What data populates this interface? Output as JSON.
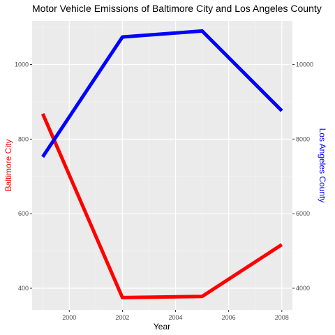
{
  "chart_data": {
    "type": "line",
    "title": "Motor Vehicle Emissions of Baltimore City and Los Angeles County",
    "xlabel": "Year",
    "x": [
      1999,
      2002,
      2005,
      2008
    ],
    "xlim": [
      1998.6,
      2008.4
    ],
    "x_ticks": [
      2000,
      2002,
      2004,
      2006,
      2008
    ],
    "x_tick_labels": [
      "2000",
      "2002",
      "2004",
      "2006",
      "2008"
    ],
    "grid": true,
    "panel_color": "#ebebeb",
    "series": [
      {
        "name": "Baltimore City",
        "axis": "left",
        "color": "#ff0000",
        "values": [
          868,
          375,
          378,
          517
        ]
      },
      {
        "name": "Los Angeles County",
        "axis": "right",
        "color": "#0000ff",
        "values": [
          7525,
          10740,
          10900,
          8760
        ]
      }
    ],
    "y_left": {
      "label": "Baltimore City",
      "label_color": "#ff0000",
      "ylim": [
        342,
        1117
      ],
      "ticks": [
        400,
        600,
        800,
        1000
      ],
      "tick_labels": [
        "400",
        "600",
        "800",
        "1000"
      ]
    },
    "y_right": {
      "label": "Los Angeles County",
      "label_color": "#0000ff",
      "ylim": [
        3420,
        11170
      ],
      "ticks": [
        4000,
        6000,
        8000,
        10000
      ],
      "tick_labels": [
        "4000",
        "6000",
        "8000",
        "10000"
      ]
    }
  }
}
